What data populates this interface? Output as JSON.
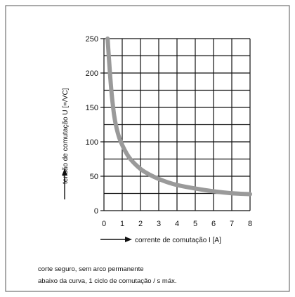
{
  "chart_data": {
    "type": "line",
    "xlabel": "corrente de comutação I [A]",
    "ylabel": "tensão de comutação U [=/VC]",
    "xlim": [
      0,
      8
    ],
    "ylim": [
      0,
      250
    ],
    "x_ticks": [
      "0",
      "1",
      "2",
      "3",
      "4",
      "5",
      "6",
      "7",
      "8"
    ],
    "y_ticks": [
      "0",
      "50",
      "100",
      "150",
      "200",
      "250"
    ],
    "grid": true,
    "series": [
      {
        "color": "#9a9a9a",
        "x": [
          0.2,
          0.3,
          0.4,
          0.5,
          0.6,
          0.8,
          1,
          1.25,
          1.5,
          2,
          2.5,
          3,
          3.5,
          4,
          5,
          6,
          7,
          8
        ],
        "y": [
          250,
          210,
          175,
          150,
          130,
          108,
          95,
          82,
          73,
          60,
          52,
          46,
          41,
          37,
          32,
          28,
          25,
          24
        ]
      }
    ],
    "caption": [
      "corte seguro, sem arco permanente",
      "abaixo da curva, 1 ciclo de comutação / s máx."
    ]
  }
}
